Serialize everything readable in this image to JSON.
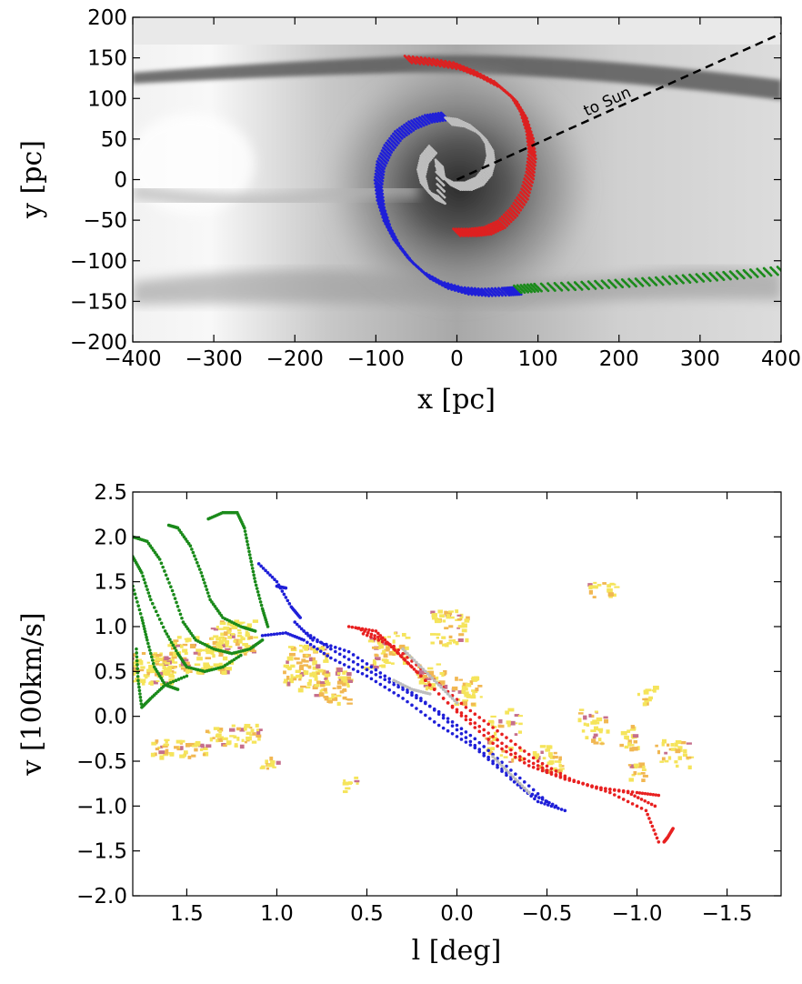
{
  "chart_data": [
    {
      "type": "scatter",
      "panel": "top",
      "xlabel": "x [pc]",
      "ylabel": "y [pc]",
      "xlim": [
        -400,
        400
      ],
      "ylim": [
        -200,
        200
      ],
      "xticks": [
        "−400",
        "−300",
        "−200",
        "−100",
        "0",
        "100",
        "200",
        "300",
        "400"
      ],
      "yticks": [
        "200",
        "150",
        "100",
        "50",
        "0",
        "−50",
        "−100",
        "−150",
        "−200"
      ],
      "background": "grayscale gas surface density map",
      "annotation": {
        "text": "to Sun",
        "line_from": [
          0,
          0
        ],
        "line_to": [
          400,
          180
        ]
      },
      "series": [
        {
          "color": "#dd2020",
          "points": [
            [
              -60,
              148
            ],
            [
              -30,
              145
            ],
            [
              0,
              140
            ],
            [
              25,
              130
            ],
            [
              50,
              117
            ],
            [
              70,
              100
            ],
            [
              82,
              80
            ],
            [
              90,
              55
            ],
            [
              93,
              30
            ],
            [
              90,
              5
            ],
            [
              83,
              -20
            ],
            [
              70,
              -40
            ],
            [
              55,
              -55
            ],
            [
              38,
              -63
            ],
            [
              20,
              -65
            ],
            [
              0,
              -65
            ]
          ]
        },
        {
          "color": "#1f1fd8",
          "points": [
            [
              -15,
              78
            ],
            [
              -35,
              75
            ],
            [
              -55,
              67
            ],
            [
              -72,
              55
            ],
            [
              -85,
              38
            ],
            [
              -94,
              18
            ],
            [
              -97,
              -5
            ],
            [
              -94,
              -30
            ],
            [
              -86,
              -55
            ],
            [
              -74,
              -78
            ],
            [
              -57,
              -100
            ],
            [
              -37,
              -118
            ],
            [
              -15,
              -130
            ],
            [
              10,
              -137
            ],
            [
              35,
              -139
            ],
            [
              60,
              -138
            ],
            [
              75,
              -137
            ]
          ]
        },
        {
          "color": "#bdbdbd",
          "points": [
            [
              -10,
              72
            ],
            [
              5,
              70
            ],
            [
              20,
              63
            ],
            [
              32,
              53
            ],
            [
              40,
              40
            ],
            [
              42,
              25
            ],
            [
              38,
              10
            ],
            [
              28,
              -2
            ],
            [
              14,
              -8
            ],
            [
              0,
              -8
            ],
            [
              -12,
              -2
            ],
            [
              -20,
              8
            ],
            [
              -22,
              20
            ],
            [
              -19,
              -25
            ],
            [
              -30,
              -20
            ],
            [
              -40,
              -8
            ],
            [
              -44,
              8
            ],
            [
              -40,
              25
            ],
            [
              -30,
              37
            ]
          ]
        },
        {
          "color": "#1a8a1a",
          "points": [
            [
              75,
              -135
            ],
            [
              100,
              -133
            ],
            [
              150,
              -131
            ],
            [
              200,
              -128
            ],
            [
              250,
              -125
            ],
            [
              300,
              -121
            ],
            [
              350,
              -117
            ],
            [
              400,
              -112
            ]
          ]
        }
      ]
    },
    {
      "type": "scatter",
      "panel": "bottom",
      "xlabel": "l [deg]",
      "ylabel": "v [100km/s]",
      "xlim": [
        1.8,
        -1.8
      ],
      "ylim": [
        -2.0,
        2.5
      ],
      "xticks": [
        "1.5",
        "1.0",
        "0.5",
        "0.0",
        "−0.5",
        "−1.0",
        "−1.5"
      ],
      "yticks": [
        "2.5",
        "2.0",
        "1.5",
        "1.0",
        "0.5",
        "0.0",
        "−0.5",
        "−1.0",
        "−1.5",
        "−2.0"
      ],
      "background": "yellow-orange observed emission",
      "series": [
        {
          "color": "#1a8a1a",
          "tracks": [
            [
              [
                1.8,
                2.0
              ],
              [
                1.72,
                1.95
              ],
              [
                1.65,
                1.75
              ],
              [
                1.58,
                1.4
              ],
              [
                1.52,
                1.05
              ],
              [
                1.45,
                0.85
              ],
              [
                1.35,
                0.75
              ],
              [
                1.25,
                0.7
              ],
              [
                1.15,
                0.75
              ],
              [
                1.08,
                0.85
              ]
            ],
            [
              [
                1.6,
                2.13
              ],
              [
                1.55,
                2.1
              ],
              [
                1.48,
                1.9
              ],
              [
                1.42,
                1.6
              ],
              [
                1.37,
                1.3
              ],
              [
                1.3,
                1.1
              ],
              [
                1.2,
                1.0
              ],
              [
                1.12,
                0.95
              ]
            ],
            [
              [
                1.38,
                2.2
              ],
              [
                1.3,
                2.27
              ],
              [
                1.22,
                2.27
              ],
              [
                1.18,
                2.1
              ],
              [
                1.15,
                1.8
              ],
              [
                1.12,
                1.5
              ],
              [
                1.08,
                1.2
              ],
              [
                1.05,
                1.0
              ]
            ],
            [
              [
                1.8,
                1.78
              ],
              [
                1.75,
                1.6
              ],
              [
                1.7,
                1.3
              ],
              [
                1.62,
                0.95
              ],
              [
                1.55,
                0.7
              ],
              [
                1.5,
                0.55
              ],
              [
                1.4,
                0.5
              ],
              [
                1.3,
                0.55
              ],
              [
                1.2,
                0.68
              ]
            ],
            [
              [
                1.8,
                1.45
              ],
              [
                1.75,
                1.1
              ],
              [
                1.72,
                0.85
              ],
              [
                1.68,
                0.55
              ],
              [
                1.62,
                0.35
              ],
              [
                1.55,
                0.3
              ]
            ],
            [
              [
                1.78,
                0.75
              ],
              [
                1.77,
                0.4
              ],
              [
                1.75,
                0.1
              ],
              [
                1.7,
                0.2
              ],
              [
                1.62,
                0.35
              ],
              [
                1.5,
                0.45
              ]
            ]
          ]
        },
        {
          "color": "#1f1fd8",
          "tracks": [
            [
              [
                1.08,
                0.9
              ],
              [
                0.95,
                0.93
              ],
              [
                0.85,
                0.85
              ],
              [
                0.7,
                0.65
              ],
              [
                0.5,
                0.45
              ],
              [
                0.3,
                0.2
              ],
              [
                0.1,
                -0.1
              ],
              [
                -0.1,
                -0.35
              ],
              [
                -0.3,
                -0.7
              ],
              [
                -0.45,
                -0.95
              ],
              [
                -0.6,
                -1.05
              ]
            ],
            [
              [
                0.9,
                1.05
              ],
              [
                0.8,
                0.85
              ],
              [
                0.6,
                0.72
              ],
              [
                0.4,
                0.45
              ],
              [
                0.2,
                0.2
              ],
              [
                0.0,
                -0.15
              ],
              [
                -0.2,
                -0.5
              ],
              [
                -0.4,
                -0.85
              ],
              [
                -0.55,
                -1.0
              ]
            ],
            [
              [
                1.1,
                1.7
              ],
              [
                1.0,
                1.5
              ],
              [
                0.92,
                1.22
              ],
              [
                0.87,
                1.1
              ]
            ],
            [
              [
                1.0,
                1.45
              ],
              [
                0.95,
                1.43
              ]
            ],
            [
              [
                0.85,
                0.95
              ],
              [
                0.7,
                0.75
              ],
              [
                0.5,
                0.52
              ],
              [
                0.3,
                0.3
              ],
              [
                0.1,
                0.05
              ],
              [
                -0.1,
                -0.25
              ],
              [
                -0.3,
                -0.6
              ],
              [
                -0.5,
                -0.95
              ]
            ]
          ]
        },
        {
          "color": "#e82020",
          "tracks": [
            [
              [
                0.6,
                1.0
              ],
              [
                0.45,
                0.95
              ],
              [
                0.35,
                0.75
              ],
              [
                0.2,
                0.45
              ],
              [
                0.0,
                0.05
              ],
              [
                -0.2,
                -0.3
              ],
              [
                -0.4,
                -0.55
              ],
              [
                -0.6,
                -0.7
              ],
              [
                -0.8,
                -0.8
              ],
              [
                -1.0,
                -0.85
              ],
              [
                -1.12,
                -0.88
              ]
            ],
            [
              [
                0.55,
                0.98
              ],
              [
                0.4,
                0.85
              ],
              [
                0.25,
                0.55
              ],
              [
                0.05,
                0.15
              ],
              [
                -0.15,
                -0.15
              ],
              [
                -0.35,
                -0.45
              ],
              [
                -0.55,
                -0.65
              ],
              [
                -0.75,
                -0.78
              ],
              [
                -0.95,
                -0.85
              ],
              [
                -1.1,
                -1.0
              ]
            ],
            [
              [
                0.52,
                0.92
              ],
              [
                0.35,
                0.78
              ],
              [
                0.15,
                0.45
              ],
              [
                -0.05,
                0.1
              ],
              [
                -0.25,
                -0.2
              ],
              [
                -0.45,
                -0.5
              ],
              [
                -0.65,
                -0.72
              ],
              [
                -0.85,
                -0.85
              ],
              [
                -1.05,
                -1.05
              ],
              [
                -1.12,
                -1.4
              ]
            ],
            [
              [
                -1.2,
                -1.25
              ],
              [
                -1.17,
                -1.35
              ],
              [
                -1.15,
                -1.4
              ]
            ]
          ]
        },
        {
          "color": "#bdbdbd",
          "tracks": [
            [
              [
                0.3,
                0.75
              ],
              [
                0.2,
                0.55
              ],
              [
                0.1,
                0.35
              ],
              [
                0.0,
                0.15
              ]
            ],
            [
              [
                0.35,
                0.4
              ],
              [
                0.25,
                0.3
              ],
              [
                0.15,
                0.25
              ]
            ],
            [
              [
                -0.2,
                -0.45
              ],
              [
                -0.3,
                -0.65
              ],
              [
                -0.4,
                -0.85
              ]
            ]
          ]
        }
      ]
    }
  ]
}
